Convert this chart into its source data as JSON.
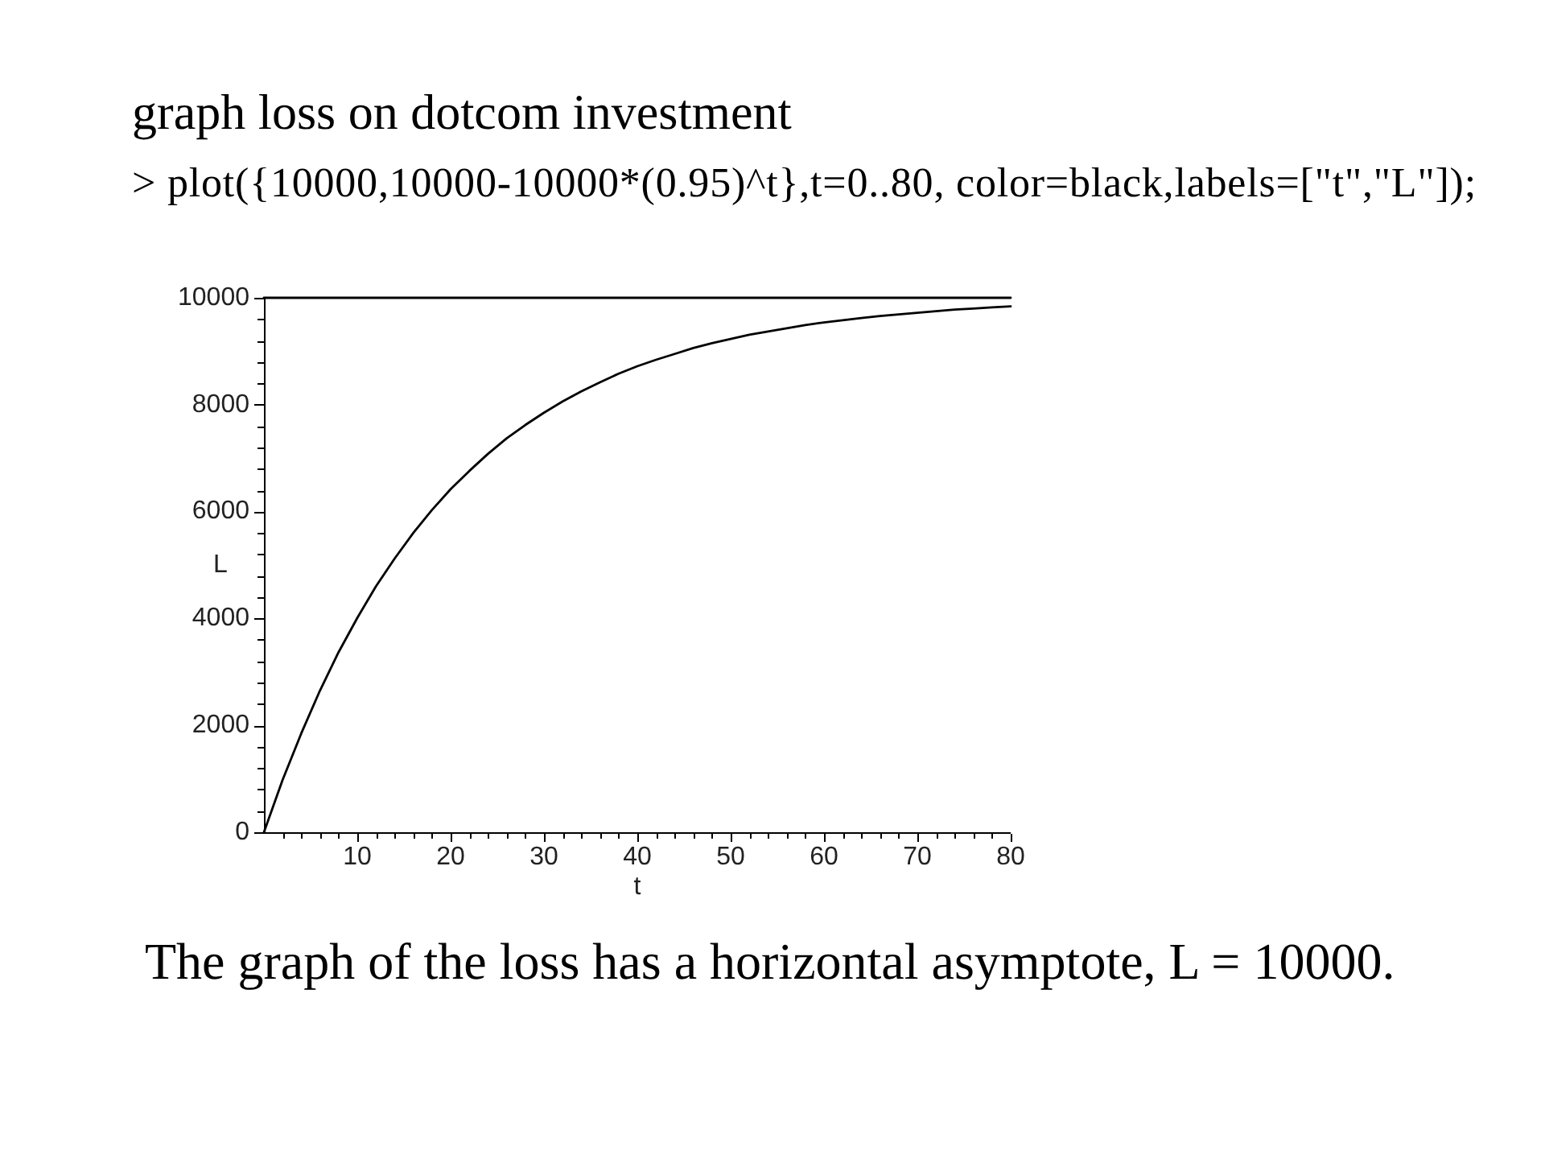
{
  "chart_data": {
    "type": "line",
    "title": "graph loss on dotcom investment",
    "annotations": [
      "> plot({10000,10000-10000*(0.95)^t},t=0..80, color=black,labels=[\"t\",\"L\"]);",
      "The graph of the loss has a horizontal asymptote, L = 10000."
    ],
    "xlabel": "t",
    "ylabel": "L",
    "series": [
      {
        "color": "#000000",
        "x": [
          0,
          80
        ],
        "values": [
          10000,
          10000
        ]
      },
      {
        "color": "#000000",
        "x": [
          0,
          2,
          4,
          6,
          8,
          10,
          12,
          14,
          16,
          18,
          20,
          22,
          24,
          26,
          28,
          30,
          32,
          34,
          36,
          38,
          40,
          42,
          44,
          46,
          48,
          50,
          52,
          54,
          56,
          58,
          60,
          62,
          64,
          66,
          68,
          70,
          72,
          74,
          76,
          78,
          80
        ],
        "values": [
          0,
          980,
          1850,
          2650,
          3370,
          4010,
          4600,
          5120,
          5600,
          6030,
          6420,
          6760,
          7080,
          7370,
          7620,
          7850,
          8060,
          8250,
          8420,
          8580,
          8720,
          8840,
          8950,
          9060,
          9150,
          9230,
          9310,
          9370,
          9430,
          9490,
          9540,
          9580,
          9620,
          9660,
          9690,
          9720,
          9750,
          9780,
          9800,
          9820,
          9840
        ]
      }
    ],
    "xlim": [
      0,
      80
    ],
    "ylim": [
      0,
      10000
    ],
    "xticks": [
      {
        "value": 2,
        "label": null
      },
      {
        "value": 4,
        "label": null
      },
      {
        "value": 6,
        "label": null
      },
      {
        "value": 8,
        "label": null
      },
      10,
      {
        "value": 12,
        "label": null
      },
      {
        "value": 14,
        "label": null
      },
      {
        "value": 16,
        "label": null
      },
      {
        "value": 18,
        "label": null
      },
      20,
      {
        "value": 22,
        "label": null
      },
      {
        "value": 24,
        "label": null
      },
      {
        "value": 26,
        "label": null
      },
      {
        "value": 28,
        "label": null
      },
      30,
      {
        "value": 32,
        "label": null
      },
      {
        "value": 34,
        "label": null
      },
      {
        "value": 36,
        "label": null
      },
      {
        "value": 38,
        "label": null
      },
      40,
      {
        "value": 42,
        "label": null
      },
      {
        "value": 44,
        "label": null
      },
      {
        "value": 46,
        "label": null
      },
      {
        "value": 48,
        "label": null
      },
      50,
      {
        "value": 52,
        "label": null
      },
      {
        "value": 54,
        "label": null
      },
      {
        "value": 56,
        "label": null
      },
      {
        "value": 58,
        "label": null
      },
      60,
      {
        "value": 62,
        "label": null
      },
      {
        "value": 64,
        "label": null
      },
      {
        "value": 66,
        "label": null
      },
      {
        "value": 68,
        "label": null
      },
      70,
      {
        "value": 72,
        "label": null
      },
      {
        "value": 74,
        "label": null
      },
      {
        "value": 76,
        "label": null
      },
      {
        "value": 78,
        "label": null
      },
      80
    ],
    "yticks": [
      0,
      {
        "value": 400,
        "label": null
      },
      {
        "value": 800,
        "label": null
      },
      {
        "value": 1200,
        "label": null
      },
      {
        "value": 1600,
        "label": null
      },
      2000,
      {
        "value": 2400,
        "label": null
      },
      {
        "value": 2800,
        "label": null
      },
      {
        "value": 3200,
        "label": null
      },
      {
        "value": 3600,
        "label": null
      },
      4000,
      {
        "value": 4400,
        "label": null
      },
      {
        "value": 4800,
        "label": null
      },
      {
        "value": 5200,
        "label": null
      },
      {
        "value": 5600,
        "label": null
      },
      6000,
      {
        "value": 6400,
        "label": null
      },
      {
        "value": 6800,
        "label": null
      },
      {
        "value": 7200,
        "label": null
      },
      {
        "value": 7600,
        "label": null
      },
      8000,
      {
        "value": 8400,
        "label": null
      },
      {
        "value": 8800,
        "label": null
      },
      {
        "value": 9200,
        "label": null
      },
      {
        "value": 9600,
        "label": null
      },
      10000
    ],
    "grid": false,
    "legend": false,
    "marker": "none",
    "line_style": "solid"
  }
}
